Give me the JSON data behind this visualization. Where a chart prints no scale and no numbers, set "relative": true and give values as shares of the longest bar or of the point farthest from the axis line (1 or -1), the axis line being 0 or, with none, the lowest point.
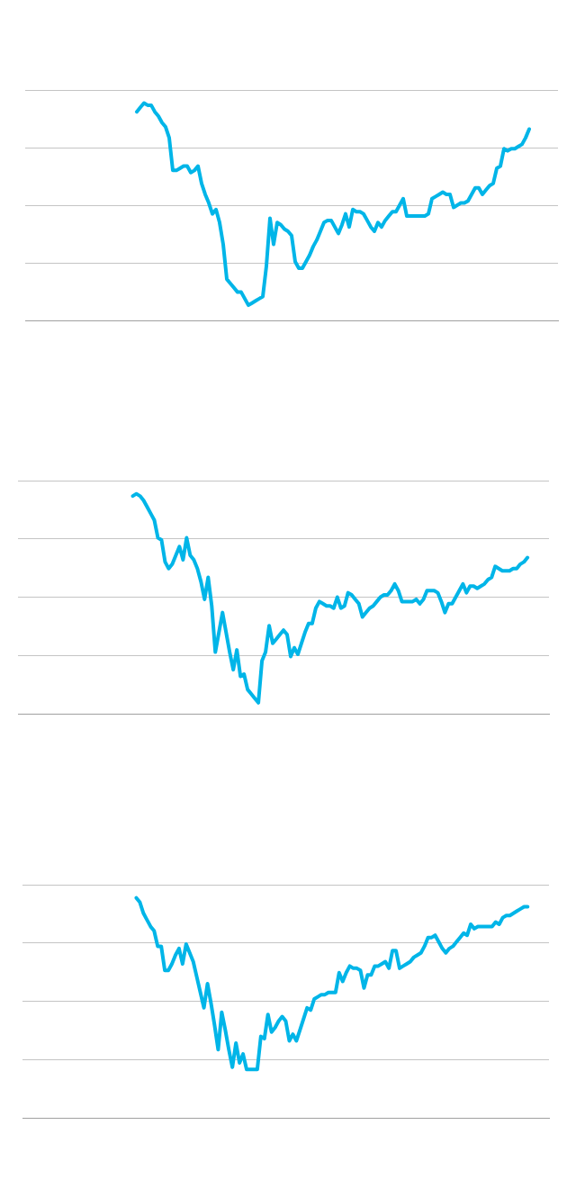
{
  "chart_data": [
    {
      "type": "line",
      "relative": true,
      "grid": "y",
      "color": "#00b5e8",
      "categories": [
        null,
        null,
        null,
        null,
        null,
        null,
        null,
        null,
        null,
        null,
        null,
        null,
        null,
        null,
        null,
        null,
        null,
        null,
        null,
        null,
        null,
        null,
        null,
        null,
        null,
        null,
        null,
        null,
        null,
        null,
        null,
        null,
        null,
        null,
        null,
        null,
        null,
        null,
        null,
        null,
        null,
        null,
        null,
        null,
        null,
        null,
        null,
        null,
        null,
        null,
        null,
        null,
        null,
        null,
        null,
        null,
        null,
        null,
        null,
        null,
        null,
        null,
        null,
        null,
        null,
        null,
        null,
        null,
        null,
        null,
        null,
        null,
        null,
        null,
        null,
        null,
        null,
        null,
        null,
        null,
        null,
        null,
        null,
        null,
        null,
        null,
        null,
        null,
        null,
        null,
        null,
        null,
        null,
        null,
        null,
        null,
        null,
        null,
        null,
        null,
        null,
        null,
        null,
        null,
        null,
        null,
        null,
        null,
        null,
        null,
        null,
        null,
        null,
        null,
        null,
        null,
        null,
        null,
        null,
        null,
        null,
        null,
        null,
        null,
        null,
        null,
        null,
        null,
        null,
        null,
        null,
        null,
        null,
        null,
        null,
        null,
        null,
        null,
        null,
        null,
        null,
        null,
        null,
        null,
        null,
        null,
        null,
        null,
        null
      ],
      "values": [
        null,
        null,
        null,
        null,
        null,
        null,
        null,
        null,
        null,
        null,
        null,
        null,
        null,
        null,
        null,
        null,
        null,
        null,
        null,
        null,
        null,
        null,
        null,
        null,
        null,
        null,
        null,
        null,
        null,
        null,
        null,
        0.96,
        0.98,
        1,
        0.99,
        0.99,
        0.96,
        0.94,
        0.91,
        0.89,
        0.84,
        0.69,
        0.69,
        0.7,
        0.71,
        0.71,
        0.68,
        0.69,
        0.71,
        0.63,
        0.58,
        0.54,
        0.49,
        0.51,
        0.45,
        0.35,
        0.19,
        0.17,
        0.15,
        0.13,
        0.13,
        0.1,
        0.07,
        0.08,
        0.09,
        0.1,
        0.11,
        0.25,
        0.47,
        0.35,
        0.45,
        0.44,
        0.42,
        0.41,
        0.39,
        0.27,
        0.24,
        0.24,
        0.27,
        0.3,
        0.34,
        0.37,
        0.41,
        0.45,
        0.46,
        0.46,
        0.43,
        0.4,
        0.44,
        0.49,
        0.43,
        0.51,
        0.5,
        0.5,
        0.49,
        0.46,
        0.43,
        0.41,
        0.45,
        0.43,
        0.46,
        0.48,
        0.5,
        0.5,
        0.53,
        0.56,
        0.48,
        0.48,
        0.48,
        0.48,
        0.48,
        0.48,
        0.49,
        0.56,
        0.57,
        0.58,
        0.59,
        0.58,
        0.58,
        0.52,
        0.53,
        0.54,
        0.54,
        0.55,
        0.58,
        0.61,
        0.61,
        0.58,
        0.6,
        0.62,
        0.63,
        0.7,
        0.71,
        0.79,
        0.78,
        0.79,
        0.79,
        0.8,
        0.81,
        0.84,
        0.88,
        null,
        null,
        null,
        null,
        null,
        null,
        null,
        null
      ]
    },
    {
      "type": "line",
      "relative": true,
      "grid": "y",
      "color": "#00b5e8",
      "categories": [
        null,
        null,
        null,
        null,
        null,
        null,
        null,
        null,
        null,
        null,
        null,
        null,
        null,
        null,
        null,
        null,
        null,
        null,
        null,
        null,
        null,
        null,
        null,
        null,
        null,
        null,
        null,
        null,
        null,
        null,
        null,
        null,
        null,
        null,
        null,
        null,
        null,
        null,
        null,
        null,
        null,
        null,
        null,
        null,
        null,
        null,
        null,
        null,
        null,
        null,
        null,
        null,
        null,
        null,
        null,
        null,
        null,
        null,
        null,
        null,
        null,
        null,
        null,
        null,
        null,
        null,
        null,
        null,
        null,
        null,
        null,
        null,
        null,
        null,
        null,
        null,
        null,
        null,
        null,
        null,
        null,
        null,
        null,
        null,
        null,
        null,
        null,
        null,
        null,
        null,
        null,
        null,
        null,
        null,
        null,
        null,
        null,
        null,
        null,
        null,
        null,
        null,
        null,
        null,
        null,
        null,
        null,
        null,
        null,
        null,
        null,
        null,
        null,
        null,
        null,
        null,
        null,
        null,
        null,
        null,
        null,
        null,
        null,
        null,
        null,
        null,
        null,
        null,
        null,
        null,
        null,
        null,
        null,
        null,
        null,
        null,
        null,
        null,
        null,
        null,
        null,
        null,
        null,
        null,
        null,
        null,
        null,
        null,
        null
      ],
      "values": [
        null,
        null,
        null,
        null,
        null,
        null,
        null,
        null,
        null,
        null,
        null,
        null,
        null,
        null,
        null,
        null,
        null,
        null,
        null,
        null,
        null,
        null,
        null,
        null,
        null,
        null,
        null,
        null,
        null,
        null,
        null,
        null,
        0.99,
        1,
        0.99,
        0.97,
        0.94,
        0.91,
        0.88,
        0.8,
        0.79,
        0.69,
        0.66,
        0.68,
        0.72,
        0.76,
        0.7,
        0.8,
        0.72,
        0.7,
        0.66,
        0.6,
        0.52,
        0.62,
        0.49,
        0.28,
        0.37,
        0.46,
        0.37,
        0.28,
        0.2,
        0.29,
        0.17,
        0.18,
        0.11,
        0.09,
        0.07,
        0.05,
        0.24,
        0.28,
        0.4,
        0.32,
        0.34,
        0.36,
        0.38,
        0.36,
        0.26,
        0.3,
        0.27,
        0.32,
        0.37,
        0.41,
        0.41,
        0.48,
        0.51,
        0.5,
        0.49,
        0.49,
        0.48,
        0.53,
        0.48,
        0.49,
        0.55,
        0.54,
        0.52,
        0.5,
        0.44,
        0.46,
        0.48,
        0.49,
        0.51,
        0.53,
        0.54,
        0.54,
        0.56,
        0.59,
        0.56,
        0.51,
        0.51,
        0.51,
        0.51,
        0.52,
        0.5,
        0.52,
        0.56,
        0.56,
        0.56,
        0.55,
        0.51,
        0.46,
        0.5,
        0.5,
        0.53,
        0.56,
        0.59,
        0.55,
        0.58,
        0.58,
        0.57,
        0.58,
        0.59,
        0.61,
        0.62,
        0.67,
        0.66,
        0.65,
        0.65,
        0.65,
        0.66,
        0.66,
        0.68,
        0.69,
        0.71,
        null,
        null,
        null,
        null,
        null,
        null
      ]
    },
    {
      "type": "line",
      "relative": true,
      "grid": "y",
      "color": "#00b5e8",
      "categories": [
        null,
        null,
        null,
        null,
        null,
        null,
        null,
        null,
        null,
        null,
        null,
        null,
        null,
        null,
        null,
        null,
        null,
        null,
        null,
        null,
        null,
        null,
        null,
        null,
        null,
        null,
        null,
        null,
        null,
        null,
        null,
        null,
        null,
        null,
        null,
        null,
        null,
        null,
        null,
        null,
        null,
        null,
        null,
        null,
        null,
        null,
        null,
        null,
        null,
        null,
        null,
        null,
        null,
        null,
        null,
        null,
        null,
        null,
        null,
        null,
        null,
        null,
        null,
        null,
        null,
        null,
        null,
        null,
        null,
        null,
        null,
        null,
        null,
        null,
        null,
        null,
        null,
        null,
        null,
        null,
        null,
        null,
        null,
        null,
        null,
        null,
        null,
        null,
        null,
        null,
        null,
        null,
        null,
        null,
        null,
        null,
        null,
        null,
        null,
        null,
        null,
        null,
        null,
        null,
        null,
        null,
        null,
        null,
        null,
        null,
        null,
        null,
        null,
        null,
        null,
        null,
        null,
        null,
        null,
        null,
        null,
        null,
        null,
        null,
        null,
        null,
        null,
        null,
        null,
        null,
        null,
        null,
        null,
        null,
        null,
        null,
        null,
        null,
        null,
        null,
        null,
        null,
        null,
        null,
        null,
        null,
        null,
        null,
        null
      ],
      "values": [
        null,
        null,
        null,
        null,
        null,
        null,
        null,
        null,
        null,
        null,
        null,
        null,
        null,
        null,
        null,
        null,
        null,
        null,
        null,
        null,
        null,
        null,
        null,
        null,
        null,
        null,
        null,
        null,
        null,
        null,
        null,
        null,
        1,
        0.98,
        0.93,
        0.9,
        0.87,
        0.85,
        0.78,
        0.78,
        0.67,
        0.67,
        0.7,
        0.74,
        0.77,
        0.7,
        0.79,
        0.75,
        0.71,
        0.64,
        0.57,
        0.5,
        0.61,
        0.52,
        0.42,
        0.31,
        0.48,
        0.4,
        0.31,
        0.23,
        0.34,
        0.25,
        0.29,
        0.22,
        0.22,
        0.22,
        0.22,
        0.37,
        0.36,
        0.47,
        0.39,
        0.41,
        0.44,
        0.46,
        0.44,
        0.35,
        0.38,
        0.35,
        0.4,
        0.45,
        0.5,
        0.49,
        0.54,
        0.55,
        0.56,
        0.56,
        0.57,
        0.57,
        0.57,
        0.66,
        0.62,
        0.66,
        0.69,
        0.68,
        0.68,
        0.67,
        0.59,
        0.65,
        0.65,
        0.69,
        0.69,
        0.7,
        0.71,
        0.68,
        0.76,
        0.76,
        0.68,
        0.69,
        0.7,
        0.71,
        0.73,
        0.74,
        0.75,
        0.78,
        0.82,
        0.82,
        0.83,
        0.8,
        0.77,
        0.75,
        0.77,
        0.78,
        0.8,
        0.82,
        0.84,
        0.83,
        0.88,
        0.86,
        0.87,
        0.87,
        0.87,
        0.87,
        0.87,
        0.89,
        0.88,
        0.91,
        0.92,
        0.92,
        0.93,
        0.94,
        0.95,
        0.96,
        0.96,
        null,
        null,
        null,
        null,
        null,
        null
      ]
    }
  ]
}
